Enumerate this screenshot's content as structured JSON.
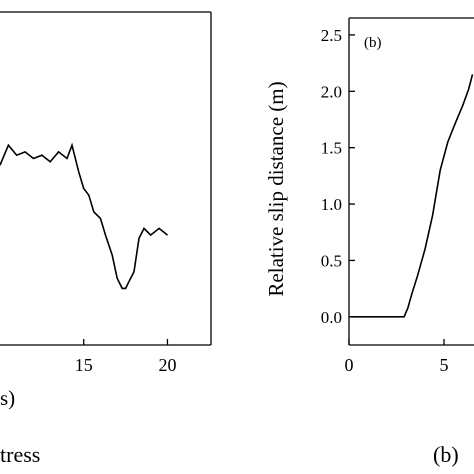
{
  "chart_data": [
    {
      "type": "line",
      "xlabel": "Time (s)",
      "xlabel_visible": "s)",
      "xlim": [
        10,
        22.6
      ],
      "xticks": [
        15,
        20
      ],
      "xtick_labels": [
        "15",
        "20"
      ],
      "series": [
        {
          "x": [
            10.0,
            10.5,
            11.0,
            11.5,
            12.0,
            12.5,
            13.0,
            13.5,
            14.0,
            14.3,
            14.7,
            15.0,
            15.3,
            15.6,
            16.0,
            16.3,
            16.7,
            17.0,
            17.3,
            17.5,
            17.7,
            18.0,
            18.3,
            18.6,
            19.0,
            19.5,
            20.0
          ],
          "y": [
            0.54,
            0.6,
            0.57,
            0.58,
            0.56,
            0.57,
            0.55,
            0.58,
            0.56,
            0.6,
            0.52,
            0.47,
            0.45,
            0.4,
            0.38,
            0.33,
            0.27,
            0.2,
            0.17,
            0.17,
            0.19,
            0.22,
            0.32,
            0.35,
            0.33,
            0.35,
            0.33
          ],
          "y_units": "fraction of visible plot height"
        }
      ],
      "caption_fragment": "tress"
    },
    {
      "type": "line",
      "panel_label": "(b)",
      "ylabel": "Relative slip distance (m)",
      "xlim": [
        0,
        6.5
      ],
      "ylim": [
        -0.25,
        2.65
      ],
      "xticks": [
        0,
        5
      ],
      "xtick_labels": [
        "0",
        "5"
      ],
      "yticks": [
        0.0,
        0.5,
        1.0,
        1.5,
        2.0,
        2.5
      ],
      "ytick_labels": [
        "0.0",
        "0.5",
        "1.0",
        "1.5",
        "2.0",
        "2.5"
      ],
      "series": [
        {
          "x": [
            0.0,
            1.0,
            2.0,
            2.9,
            3.1,
            3.3,
            3.6,
            4.0,
            4.4,
            4.8,
            5.2,
            5.6,
            6.0,
            6.3,
            6.5
          ],
          "y": [
            0.0,
            0.0,
            0.0,
            0.0,
            0.08,
            0.2,
            0.36,
            0.6,
            0.9,
            1.3,
            1.55,
            1.72,
            1.88,
            2.02,
            2.15
          ]
        }
      ],
      "caption_label": "(b)"
    }
  ]
}
